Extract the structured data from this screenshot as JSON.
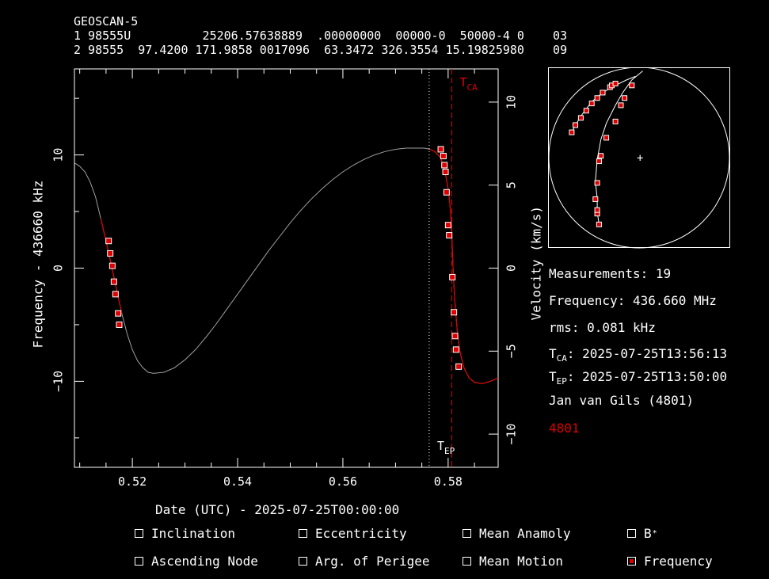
{
  "header": {
    "name": "GEOSCAN-5",
    "line1": "1 98555U          25206.57638889  .00000000  00000-0  50000-4 0    03",
    "line2": "2 98555  97.4200 171.9858 0017096  63.3472 326.3554 15.19825980    09"
  },
  "chart_data": {
    "type": "line",
    "xlabel": "Date (UTC) - 2025-07-25T00:00:00",
    "ylabel": "Frequency - 436660 kHz",
    "ylabel_right": "Velocity (km/s)",
    "xlim": [
      0.509,
      0.5895
    ],
    "ylim": [
      -17.6,
      17.6
    ],
    "y2lim": [
      -12.0,
      12.0
    ],
    "xticks": [
      0.52,
      0.54,
      0.56,
      0.58
    ],
    "xtick_labels": [
      "0.52",
      "0.54",
      "0.56",
      "0.58"
    ],
    "yticks": [
      -10,
      0,
      10
    ],
    "ytick_labels": [
      "−10",
      "0",
      "10"
    ],
    "y2ticks": [
      -10,
      -5,
      0,
      5,
      10
    ],
    "y2tick_labels": [
      "−10",
      "−5",
      "0",
      "5",
      "10"
    ],
    "t_ep": 0.5764,
    "t_ca": 0.5807,
    "t_ca_label": "CA",
    "t_ep_label": "EP",
    "model_curve": {
      "color_outside": "#a0a0a0",
      "color_fitted": "#e00000",
      "fitted_ranges": [
        [
          0.514,
          0.518
        ],
        [
          0.576,
          0.5895
        ]
      ],
      "points": [
        [
          0.509,
          9.3
        ],
        [
          0.51,
          9.0
        ],
        [
          0.511,
          8.5
        ],
        [
          0.512,
          7.6
        ],
        [
          0.513,
          6.3
        ],
        [
          0.514,
          4.4
        ],
        [
          0.515,
          2.4
        ],
        [
          0.516,
          0.3
        ],
        [
          0.517,
          -1.9
        ],
        [
          0.518,
          -4.0
        ],
        [
          0.519,
          -5.8
        ],
        [
          0.52,
          -7.2
        ],
        [
          0.521,
          -8.2
        ],
        [
          0.522,
          -8.8
        ],
        [
          0.523,
          -9.2
        ],
        [
          0.524,
          -9.3
        ],
        [
          0.526,
          -9.2
        ],
        [
          0.528,
          -8.8
        ],
        [
          0.53,
          -8.1
        ],
        [
          0.532,
          -7.2
        ],
        [
          0.534,
          -6.1
        ],
        [
          0.536,
          -4.9
        ],
        [
          0.538,
          -3.6
        ],
        [
          0.54,
          -2.3
        ],
        [
          0.542,
          -1.0
        ],
        [
          0.544,
          0.3
        ],
        [
          0.546,
          1.6
        ],
        [
          0.548,
          2.8
        ],
        [
          0.55,
          4.0
        ],
        [
          0.552,
          5.1
        ],
        [
          0.554,
          6.1
        ],
        [
          0.556,
          7.0
        ],
        [
          0.558,
          7.8
        ],
        [
          0.56,
          8.5
        ],
        [
          0.562,
          9.1
        ],
        [
          0.564,
          9.6
        ],
        [
          0.566,
          10.0
        ],
        [
          0.568,
          10.3
        ],
        [
          0.57,
          10.5
        ],
        [
          0.572,
          10.6
        ],
        [
          0.574,
          10.6
        ],
        [
          0.5755,
          10.6
        ],
        [
          0.5765,
          10.5
        ],
        [
          0.5775,
          10.3
        ],
        [
          0.5785,
          9.8
        ],
        [
          0.579,
          9.2
        ],
        [
          0.5795,
          8.3
        ],
        [
          0.58,
          7.0
        ],
        [
          0.5803,
          5.8
        ],
        [
          0.5806,
          4.0
        ],
        [
          0.5808,
          1.6
        ],
        [
          0.581,
          -0.7
        ],
        [
          0.5813,
          -3.1
        ],
        [
          0.5817,
          -5.4
        ],
        [
          0.5822,
          -7.3
        ],
        [
          0.583,
          -8.8
        ],
        [
          0.584,
          -9.7
        ],
        [
          0.585,
          -10.1
        ],
        [
          0.5865,
          -10.2
        ],
        [
          0.588,
          -10.0
        ],
        [
          0.5895,
          -9.7
        ]
      ]
    },
    "measurements": [
      [
        0.5155,
        2.4
      ],
      [
        0.5158,
        1.3
      ],
      [
        0.5162,
        0.2
      ],
      [
        0.5165,
        -1.2
      ],
      [
        0.5168,
        -2.3
      ],
      [
        0.5173,
        -4.0
      ],
      [
        0.5175,
        -5.0
      ],
      [
        0.5786,
        10.5
      ],
      [
        0.5791,
        9.9
      ],
      [
        0.5793,
        9.1
      ],
      [
        0.5795,
        8.5
      ],
      [
        0.5797,
        6.7
      ],
      [
        0.58,
        3.8
      ],
      [
        0.5802,
        2.9
      ],
      [
        0.5808,
        -0.8
      ],
      [
        0.5811,
        -3.9
      ],
      [
        0.5813,
        -6.0
      ],
      [
        0.5815,
        -7.2
      ],
      [
        0.582,
        -8.7
      ]
    ]
  },
  "ground_track": {
    "center_marker": "+",
    "passes": [
      [
        [
          0.13,
          0.37
        ],
        [
          0.14,
          0.34
        ],
        [
          0.18,
          0.27
        ],
        [
          0.24,
          0.19
        ],
        [
          0.3,
          0.14
        ],
        [
          0.37,
          0.1
        ],
        [
          0.43,
          0.07
        ],
        [
          0.48,
          0.05
        ]
      ],
      [
        [
          0.28,
          0.87
        ],
        [
          0.27,
          0.8
        ],
        [
          0.27,
          0.73
        ],
        [
          0.26,
          0.63
        ],
        [
          0.27,
          0.51
        ],
        [
          0.29,
          0.4
        ],
        [
          0.32,
          0.31
        ],
        [
          0.37,
          0.21
        ],
        [
          0.41,
          0.14
        ],
        [
          0.46,
          0.07
        ],
        [
          0.52,
          0.02
        ]
      ]
    ],
    "pass_points": [
      [
        [
          0.13,
          0.36
        ],
        [
          0.15,
          0.32
        ],
        [
          0.18,
          0.28
        ],
        [
          0.21,
          0.24
        ],
        [
          0.24,
          0.2
        ],
        [
          0.27,
          0.17
        ],
        [
          0.3,
          0.14
        ],
        [
          0.34,
          0.11
        ],
        [
          0.35,
          0.1
        ],
        [
          0.37,
          0.09
        ]
      ],
      [
        [
          0.28,
          0.87
        ],
        [
          0.27,
          0.81
        ],
        [
          0.27,
          0.79
        ],
        [
          0.26,
          0.73
        ],
        [
          0.27,
          0.64
        ],
        [
          0.28,
          0.52
        ],
        [
          0.29,
          0.49
        ],
        [
          0.32,
          0.39
        ],
        [
          0.37,
          0.3
        ],
        [
          0.4,
          0.21
        ],
        [
          0.42,
          0.17
        ],
        [
          0.46,
          0.1
        ]
      ]
    ]
  },
  "info": {
    "measurements": "Measurements: 19",
    "frequency": "Frequency: 436.660 MHz",
    "rms": "rms: 0.081 kHz",
    "tca_prefix": "T",
    "tca_sub": "CA",
    "tca_value": ": 2025-07-25T13:56:13",
    "tep_prefix": "T",
    "tep_sub": "EP",
    "tep_value": ": 2025-07-25T13:50:00",
    "observer": "Jan van Gils (4801)",
    "site_id": "4801"
  },
  "options": [
    {
      "label": "Inclination",
      "checked": false
    },
    {
      "label": "Eccentricity",
      "checked": false
    },
    {
      "label": "Mean Anamoly",
      "checked": false
    },
    {
      "label": "B",
      "sup": "*",
      "checked": false
    },
    {
      "label": "Ascending Node",
      "checked": false
    },
    {
      "label": "Arg. of Perigee",
      "checked": false
    },
    {
      "label": "Mean Motion",
      "checked": false
    },
    {
      "label": "Frequency",
      "checked": true
    }
  ],
  "colors": {
    "background": "#000000",
    "foreground": "#ffffff",
    "accent_red": "#e00000",
    "model_gray": "#a0a0a0"
  }
}
